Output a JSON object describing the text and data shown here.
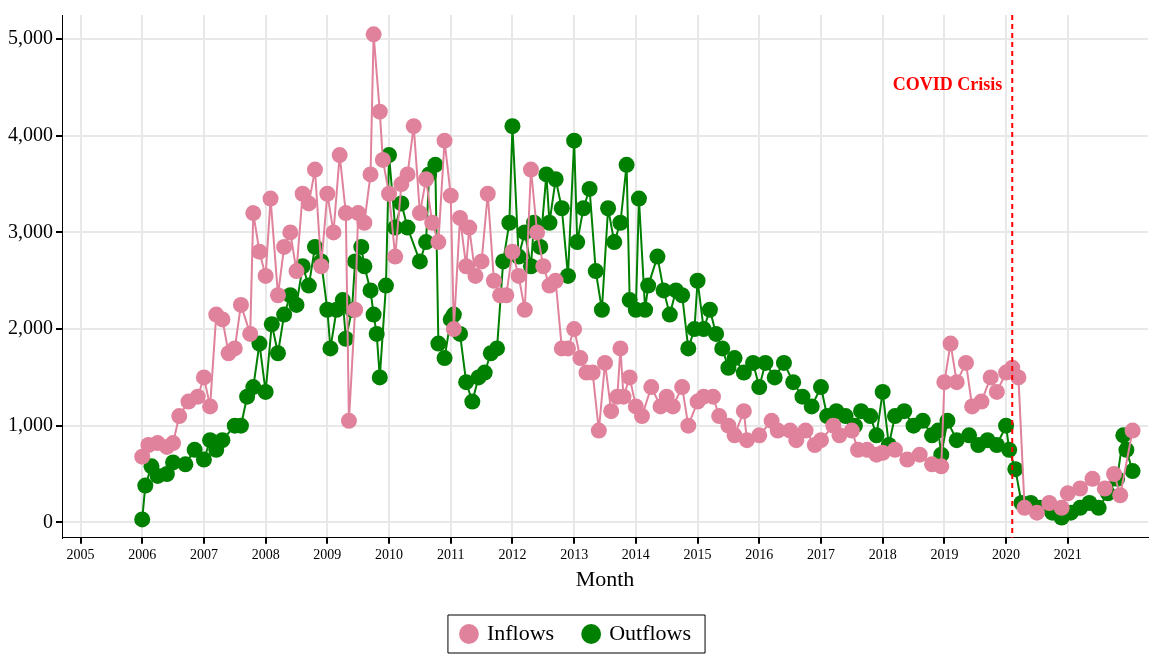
{
  "chart_data": {
    "type": "line",
    "xlabel": "Month",
    "marker": "circle",
    "grid": true,
    "legend": "bottom",
    "line_style": "solid",
    "xlim": [
      2004.7,
      2022.3
    ],
    "xticks": [
      2005,
      2006,
      2007,
      2008,
      2009,
      2010,
      2011,
      2012,
      2013,
      2014,
      2015,
      2016,
      2017,
      2018,
      2019,
      2020,
      2021
    ],
    "ylim": [
      -160,
      5250
    ],
    "yticks": [
      {
        "value": 0,
        "label": "0"
      },
      {
        "value": 1000,
        "label": "1,000"
      },
      {
        "value": 2000,
        "label": "2,000"
      },
      {
        "value": 3000,
        "label": "3,000"
      },
      {
        "value": 4000,
        "label": "4,000"
      },
      {
        "value": 5000,
        "label": "5,000"
      }
    ],
    "ref_lines": [
      {
        "axis": "x",
        "value": 2020.1,
        "label": "COVID Crisis",
        "color": "#ff0000",
        "line_style": "dashed"
      }
    ],
    "series": [
      {
        "name": "Inflows",
        "color": "#e0829c",
        "x": [
          2006.0,
          2006.1,
          2006.25,
          2006.4,
          2006.5,
          2006.6,
          2006.75,
          2006.9,
          2007.0,
          2007.1,
          2007.2,
          2007.3,
          2007.4,
          2007.5,
          2007.6,
          2007.75,
          2007.8,
          2007.9,
          2008.0,
          2008.08,
          2008.2,
          2008.3,
          2008.4,
          2008.5,
          2008.6,
          2008.7,
          2008.8,
          2008.9,
          2009.0,
          2009.1,
          2009.2,
          2009.3,
          2009.35,
          2009.45,
          2009.5,
          2009.6,
          2009.7,
          2009.75,
          2009.85,
          2009.9,
          2010.0,
          2010.1,
          2010.2,
          2010.3,
          2010.4,
          2010.5,
          2010.6,
          2010.7,
          2010.8,
          2010.9,
          2011.0,
          2011.05,
          2011.15,
          2011.25,
          2011.3,
          2011.4,
          2011.5,
          2011.6,
          2011.7,
          2011.8,
          2011.9,
          2012.0,
          2012.1,
          2012.2,
          2012.3,
          2012.4,
          2012.5,
          2012.6,
          2012.7,
          2012.8,
          2012.9,
          2013.0,
          2013.1,
          2013.2,
          2013.3,
          2013.4,
          2013.5,
          2013.6,
          2013.7,
          2013.75,
          2013.8,
          2013.9,
          2014.0,
          2014.1,
          2014.25,
          2014.4,
          2014.5,
          2014.6,
          2014.75,
          2014.85,
          2015.0,
          2015.1,
          2015.25,
          2015.35,
          2015.5,
          2015.6,
          2015.75,
          2015.8,
          2016.0,
          2016.2,
          2016.3,
          2016.5,
          2016.6,
          2016.75,
          2016.9,
          2017.0,
          2017.2,
          2017.3,
          2017.5,
          2017.6,
          2017.75,
          2017.9,
          2018.0,
          2018.2,
          2018.4,
          2018.6,
          2018.8,
          2018.95,
          2019.0,
          2019.1,
          2019.2,
          2019.35,
          2019.45,
          2019.6,
          2019.75,
          2019.85,
          2020.0,
          2020.1,
          2020.2,
          2020.3,
          2020.5,
          2020.7,
          2020.9,
          2021.0,
          2021.2,
          2021.4,
          2021.6,
          2021.75,
          2021.85,
          2022.05
        ],
        "values": [
          680,
          800,
          820,
          780,
          820,
          1100,
          1250,
          1300,
          1500,
          1200,
          2150,
          2100,
          1750,
          1800,
          2250,
          1950,
          3200,
          2800,
          2550,
          3350,
          2350,
          2850,
          3000,
          2600,
          3400,
          3300,
          3650,
          2650,
          3400,
          3000,
          3800,
          3200,
          1050,
          2200,
          3200,
          3100,
          3600,
          5050,
          4250,
          3750,
          3400,
          2750,
          3500,
          3600,
          4100,
          3200,
          3550,
          3100,
          2900,
          3950,
          3380,
          2000,
          3150,
          2650,
          3050,
          2550,
          2700,
          3400,
          2500,
          2350,
          2350,
          2800,
          2550,
          2200,
          3650,
          3000,
          2650,
          2450,
          2500,
          1800,
          1800,
          2000,
          1700,
          1550,
          1550,
          950,
          1650,
          1150,
          1300,
          1800,
          1300,
          1500,
          1200,
          1100,
          1400,
          1200,
          1300,
          1200,
          1400,
          1000,
          1250,
          1300,
          1300,
          1100,
          1000,
          900,
          1150,
          850,
          900,
          1050,
          950,
          950,
          850,
          950,
          800,
          850,
          1000,
          900,
          950,
          750,
          750,
          700,
          720,
          750,
          650,
          700,
          600,
          580,
          1450,
          1850,
          1450,
          1650,
          1200,
          1250,
          1500,
          1350,
          1550,
          1600,
          1500,
          150,
          100,
          200,
          150,
          300,
          350,
          450,
          350,
          500,
          280,
          950
        ]
      },
      {
        "name": "Outflows",
        "color": "#008000",
        "x": [
          2006.0,
          2006.05,
          2006.15,
          2006.25,
          2006.4,
          2006.5,
          2006.7,
          2006.85,
          2007.0,
          2007.1,
          2007.2,
          2007.3,
          2007.5,
          2007.6,
          2007.7,
          2007.8,
          2007.9,
          2008.0,
          2008.1,
          2008.2,
          2008.3,
          2008.4,
          2008.5,
          2008.6,
          2008.7,
          2008.8,
          2008.9,
          2009.0,
          2009.05,
          2009.15,
          2009.25,
          2009.3,
          2009.4,
          2009.45,
          2009.55,
          2009.6,
          2009.7,
          2009.75,
          2009.8,
          2009.85,
          2009.95,
          2010.0,
          2010.1,
          2010.2,
          2010.3,
          2010.5,
          2010.6,
          2010.65,
          2010.75,
          2010.8,
          2010.9,
          2011.0,
          2011.05,
          2011.15,
          2011.25,
          2011.35,
          2011.45,
          2011.55,
          2011.65,
          2011.75,
          2011.85,
          2011.95,
          2012.0,
          2012.1,
          2012.2,
          2012.3,
          2012.35,
          2012.45,
          2012.55,
          2012.6,
          2012.7,
          2012.8,
          2012.9,
          2013.0,
          2013.05,
          2013.15,
          2013.25,
          2013.35,
          2013.45,
          2013.55,
          2013.65,
          2013.75,
          2013.85,
          2013.9,
          2014.0,
          2014.05,
          2014.15,
          2014.2,
          2014.35,
          2014.45,
          2014.55,
          2014.65,
          2014.75,
          2014.85,
          2014.95,
          2015.0,
          2015.1,
          2015.2,
          2015.3,
          2015.4,
          2015.5,
          2015.6,
          2015.75,
          2015.9,
          2016.0,
          2016.1,
          2016.25,
          2016.4,
          2016.55,
          2016.7,
          2016.85,
          2017.0,
          2017.1,
          2017.25,
          2017.4,
          2017.55,
          2017.65,
          2017.8,
          2017.9,
          2018.0,
          2018.1,
          2018.2,
          2018.35,
          2018.5,
          2018.65,
          2018.8,
          2018.9,
          2018.95,
          2019.05,
          2019.2,
          2019.4,
          2019.55,
          2019.7,
          2019.85,
          2020.0,
          2020.05,
          2020.15,
          2020.25,
          2020.4,
          2020.55,
          2020.75,
          2020.9,
          2021.05,
          2021.2,
          2021.35,
          2021.5,
          2021.65,
          2021.8,
          2021.9,
          2021.95,
          2022.05
        ],
        "values": [
          30,
          380,
          580,
          480,
          500,
          620,
          600,
          750,
          650,
          850,
          750,
          850,
          1000,
          1000,
          1300,
          1400,
          1850,
          1350,
          2050,
          1750,
          2150,
          2350,
          2250,
          2650,
          2450,
          2850,
          2700,
          2200,
          1800,
          2200,
          2300,
          1900,
          2200,
          2700,
          2850,
          2650,
          2400,
          2150,
          1950,
          1500,
          2450,
          3800,
          3050,
          3300,
          3050,
          2700,
          2900,
          3600,
          3700,
          1850,
          1700,
          2100,
          2150,
          1950,
          1450,
          1250,
          1500,
          1550,
          1750,
          1800,
          2700,
          3100,
          4100,
          2750,
          3000,
          2650,
          3100,
          2850,
          3600,
          3100,
          3550,
          3250,
          2550,
          3950,
          2900,
          3250,
          3450,
          2600,
          2200,
          3250,
          2900,
          3100,
          3700,
          2300,
          2200,
          3350,
          2200,
          2450,
          2750,
          2400,
          2150,
          2400,
          2350,
          1800,
          2000,
          2500,
          2000,
          2200,
          1950,
          1800,
          1600,
          1700,
          1550,
          1650,
          1400,
          1650,
          1500,
          1650,
          1450,
          1300,
          1200,
          1400,
          1100,
          1150,
          1100,
          1000,
          1150,
          1100,
          900,
          1350,
          800,
          1100,
          1150,
          1000,
          1050,
          900,
          950,
          700,
          1050,
          850,
          900,
          800,
          850,
          800,
          1000,
          750,
          550,
          200,
          200,
          150,
          100,
          50,
          100,
          150,
          200,
          150,
          300,
          450,
          900,
          750,
          530
        ]
      }
    ]
  }
}
